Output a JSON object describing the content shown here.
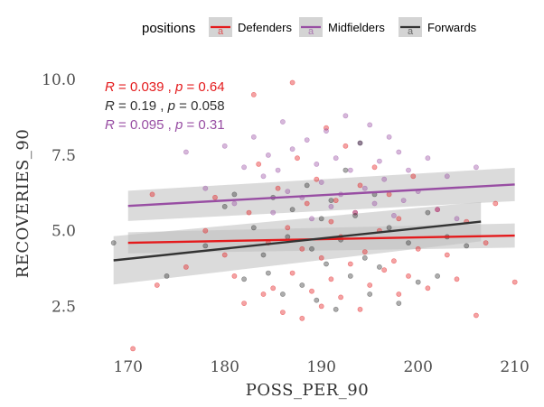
{
  "chart_data": {
    "type": "scatter",
    "xlabel": "POSS_PER_90",
    "ylabel": "RECOVERIES_90",
    "xlim": [
      167.5,
      210.5
    ],
    "ylim": [
      1.2,
      10.6
    ],
    "x_ticks": [
      170,
      180,
      190,
      200,
      210
    ],
    "y_ticks": [
      2.5,
      5.0,
      7.5,
      10.0
    ],
    "x_tick_labels": [
      "170",
      "180",
      "190",
      "200",
      "210"
    ],
    "y_tick_labels": [
      "2.5",
      "5.0",
      "7.5",
      "10.0"
    ],
    "grid": false,
    "legend": {
      "title": "positions",
      "placement": "top",
      "entries": [
        "Defenders",
        "Midfielders",
        "Forwards"
      ],
      "key_glyph": "a"
    },
    "series": [
      {
        "name": "Defenders",
        "color": "#e41a1c",
        "regression": {
          "x": [
            170,
            210
          ],
          "y": [
            4.6,
            4.84
          ]
        },
        "band_halfwidth": [
          0.35,
          0.4
        ],
        "stat": {
          "R": "0.039",
          "p": "0.64"
        },
        "points": [
          [
            170.5,
            1.1
          ],
          [
            172.5,
            6.2
          ],
          [
            173,
            3.2
          ],
          [
            176,
            3.8
          ],
          [
            178,
            5.0
          ],
          [
            179,
            6.1
          ],
          [
            180,
            4.2
          ],
          [
            181,
            3.5
          ],
          [
            182,
            2.6
          ],
          [
            182.5,
            5.6
          ],
          [
            183,
            9.5
          ],
          [
            183.5,
            7.2
          ],
          [
            184,
            2.9
          ],
          [
            184.5,
            4.6
          ],
          [
            185,
            3.1
          ],
          [
            185.5,
            6.4
          ],
          [
            186,
            2.3
          ],
          [
            186.5,
            5.1
          ],
          [
            187,
            9.9
          ],
          [
            187,
            3.6
          ],
          [
            187.5,
            7.4
          ],
          [
            188,
            4.4
          ],
          [
            188,
            2.1
          ],
          [
            188.5,
            5.9
          ],
          [
            189,
            3.0
          ],
          [
            189.5,
            6.7
          ],
          [
            190,
            4.1
          ],
          [
            190,
            2.5
          ],
          [
            190.5,
            8.4
          ],
          [
            191,
            5.3
          ],
          [
            191,
            3.4
          ],
          [
            191.5,
            6.0
          ],
          [
            192,
            2.8
          ],
          [
            192,
            4.8
          ],
          [
            192.5,
            7.8
          ],
          [
            193,
            3.9
          ],
          [
            193.5,
            5.6
          ],
          [
            194,
            2.4
          ],
          [
            194,
            6.5
          ],
          [
            194.5,
            4.3
          ],
          [
            195,
            3.2
          ],
          [
            195.5,
            7.1
          ],
          [
            196,
            5.0
          ],
          [
            196.5,
            3.7
          ],
          [
            197,
            6.2
          ],
          [
            197.5,
            4.0
          ],
          [
            198,
            2.9
          ],
          [
            198,
            5.4
          ],
          [
            199,
            3.5
          ],
          [
            199.5,
            6.8
          ],
          [
            200,
            4.4
          ],
          [
            201,
            3.1
          ],
          [
            202,
            5.7
          ],
          [
            203,
            4.2
          ],
          [
            204,
            3.4
          ],
          [
            205,
            5.3
          ],
          [
            206,
            2.2
          ],
          [
            207,
            4.6
          ],
          [
            208,
            5.9
          ],
          [
            210,
            3.3
          ]
        ]
      },
      {
        "name": "Midfielders",
        "color": "#984ea3",
        "regression": {
          "x": [
            170,
            210
          ],
          "y": [
            5.82,
            6.53
          ]
        },
        "band_halfwidth": [
          0.5,
          0.55
        ],
        "stat": {
          "R": "0.095",
          "p": "0.31"
        },
        "points": [
          [
            176,
            7.6
          ],
          [
            178,
            6.4
          ],
          [
            180,
            7.8
          ],
          [
            181,
            5.9
          ],
          [
            182,
            7.1
          ],
          [
            183,
            8.1
          ],
          [
            184,
            6.8
          ],
          [
            184.5,
            7.5
          ],
          [
            185,
            5.6
          ],
          [
            185.5,
            7.0
          ],
          [
            186,
            8.6
          ],
          [
            186.5,
            6.3
          ],
          [
            187,
            7.7
          ],
          [
            188,
            6.1
          ],
          [
            188.5,
            8.0
          ],
          [
            189,
            5.4
          ],
          [
            189.5,
            7.2
          ],
          [
            190,
            6.6
          ],
          [
            190.5,
            8.3
          ],
          [
            191,
            5.8
          ],
          [
            191.5,
            7.4
          ],
          [
            192,
            6.2
          ],
          [
            192.5,
            8.8
          ],
          [
            193,
            7.0
          ],
          [
            193.5,
            5.6
          ],
          [
            194,
            7.9
          ],
          [
            194.5,
            6.4
          ],
          [
            195,
            8.5
          ],
          [
            195.5,
            5.9
          ],
          [
            196,
            7.3
          ],
          [
            196.5,
            6.7
          ],
          [
            197,
            8.1
          ],
          [
            197.5,
            5.5
          ],
          [
            198,
            7.6
          ],
          [
            198.5,
            6.0
          ],
          [
            199,
            7.0
          ],
          [
            200,
            6.3
          ],
          [
            201,
            7.4
          ],
          [
            202,
            5.7
          ],
          [
            203,
            6.8
          ],
          [
            204,
            5.4
          ],
          [
            206,
            7.1
          ]
        ]
      },
      {
        "name": "Forwards",
        "color": "#333333",
        "regression": {
          "x": [
            168.5,
            206.5
          ],
          "y": [
            4.02,
            5.3
          ]
        },
        "band_halfwidth": [
          0.8,
          0.65
        ],
        "stat": {
          "R": "0.19",
          "p": "0.058"
        },
        "points": [
          [
            168.5,
            4.6
          ],
          [
            174,
            3.5
          ],
          [
            178,
            4.5
          ],
          [
            180,
            5.8
          ],
          [
            181,
            6.2
          ],
          [
            182,
            3.4
          ],
          [
            183,
            5.1
          ],
          [
            184,
            4.2
          ],
          [
            184.5,
            3.6
          ],
          [
            185,
            6.1
          ],
          [
            186,
            2.9
          ],
          [
            186.5,
            4.8
          ],
          [
            187,
            5.7
          ],
          [
            188,
            3.2
          ],
          [
            188.5,
            6.5
          ],
          [
            189,
            4.4
          ],
          [
            189.5,
            2.7
          ],
          [
            190,
            5.4
          ],
          [
            190.5,
            3.9
          ],
          [
            191,
            6.0
          ],
          [
            191.5,
            2.4
          ],
          [
            192,
            4.7
          ],
          [
            192.5,
            7.0
          ],
          [
            193,
            3.5
          ],
          [
            193.5,
            5.5
          ],
          [
            194,
            7.9
          ],
          [
            194.5,
            4.1
          ],
          [
            195,
            2.9
          ],
          [
            195.5,
            6.2
          ],
          [
            196,
            3.8
          ],
          [
            197,
            5.1
          ],
          [
            198,
            2.6
          ],
          [
            199,
            4.6
          ],
          [
            200,
            3.3
          ],
          [
            201,
            5.6
          ],
          [
            202,
            3.5
          ],
          [
            203,
            4.8
          ],
          [
            205,
            4.5
          ]
        ]
      }
    ]
  }
}
